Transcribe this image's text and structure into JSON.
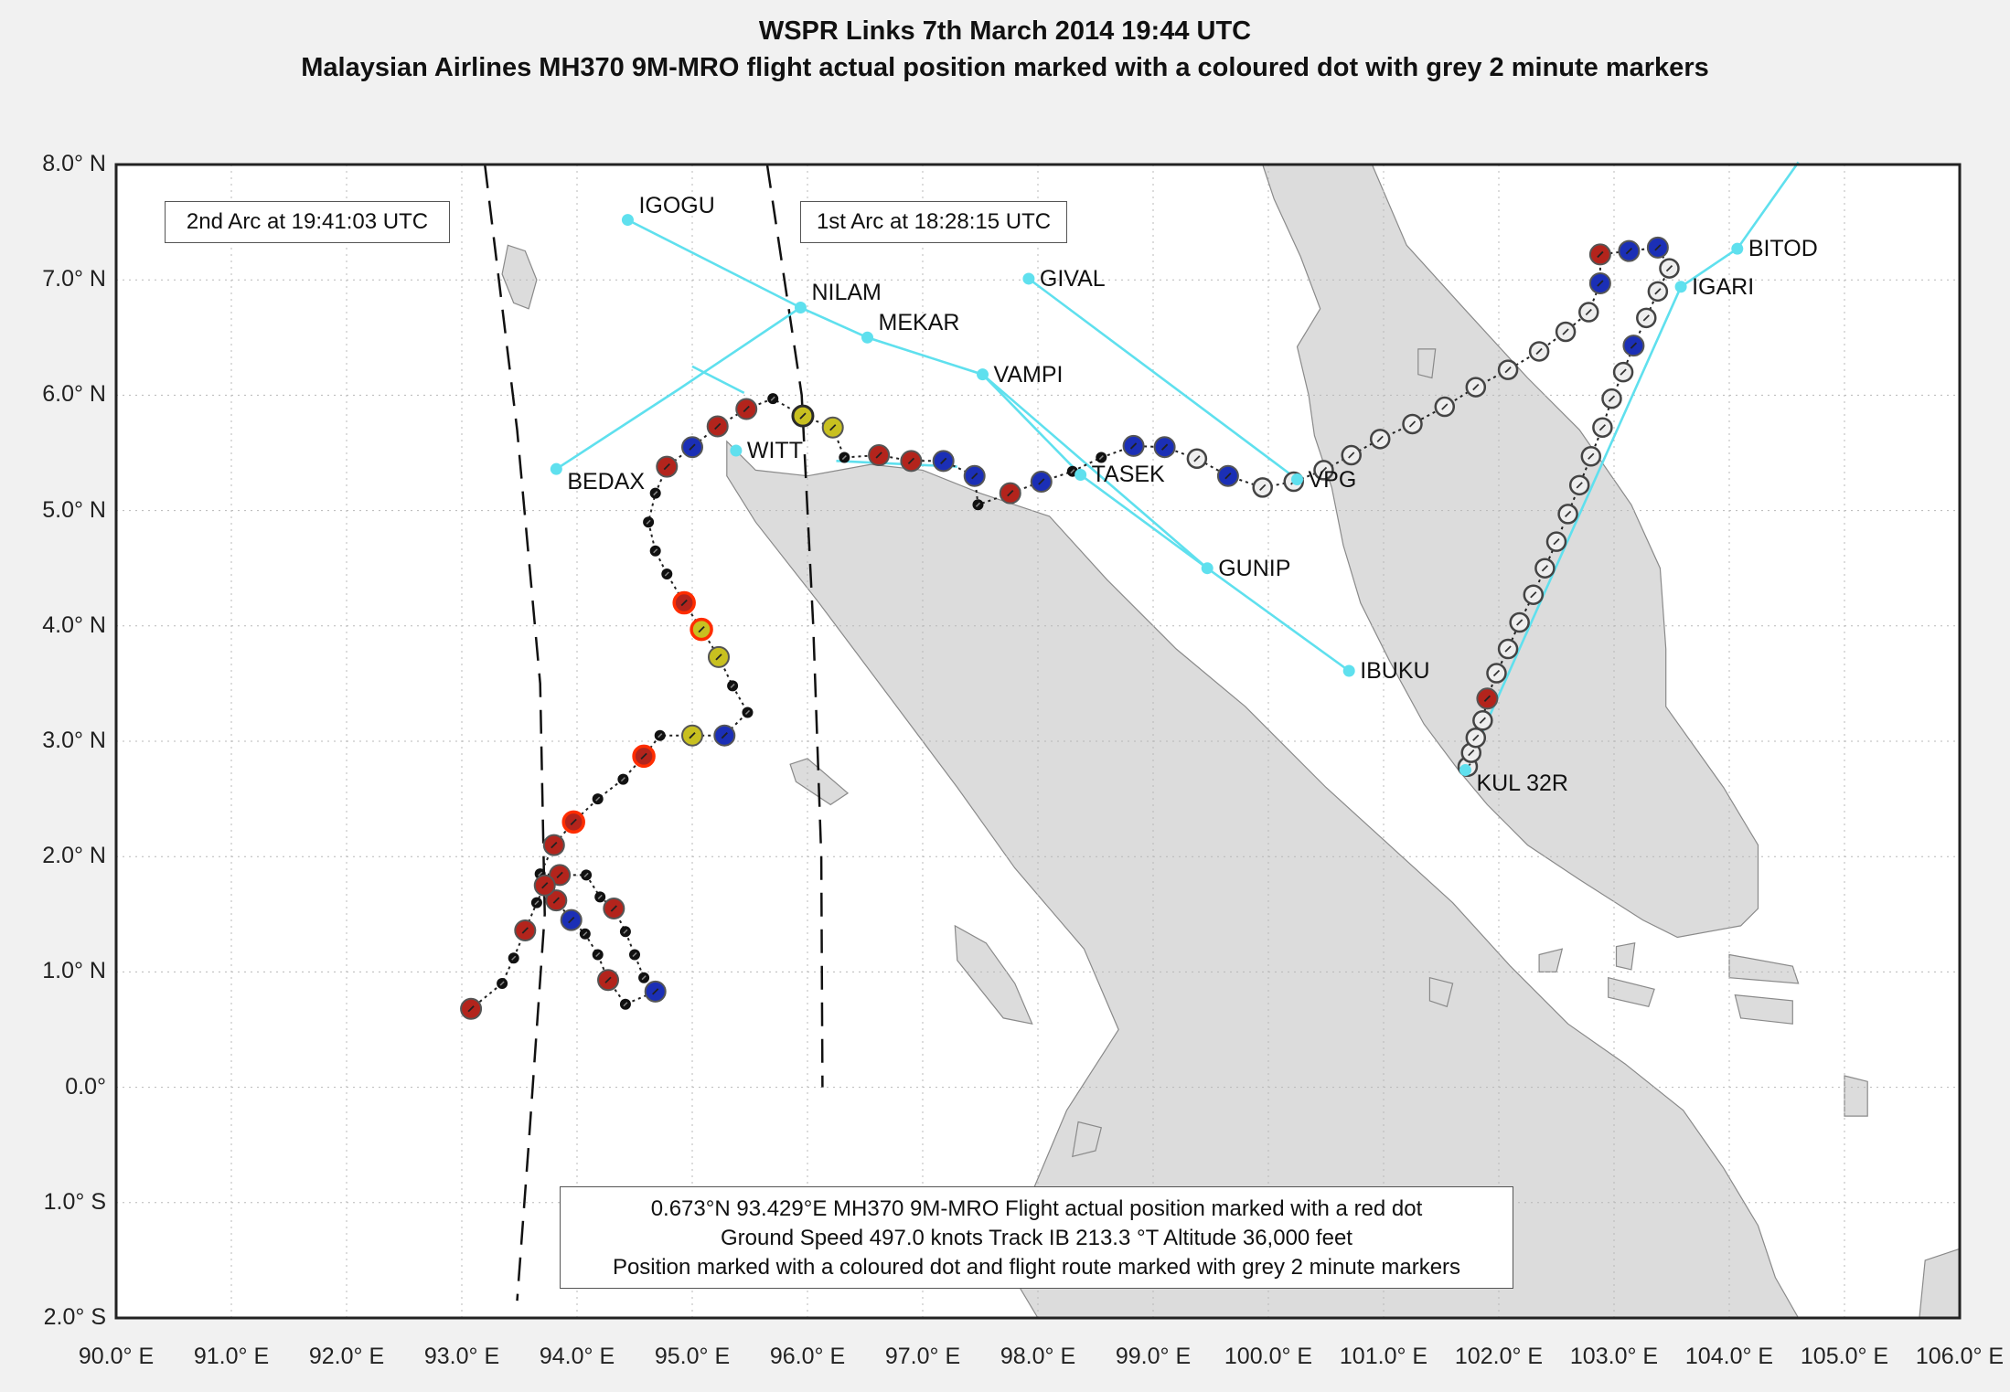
{
  "title": "WSPR Links 7th March 2014 19:44 UTC",
  "subtitle": "Malaysian Airlines MH370 9M-MRO flight actual position marked with a coloured dot with grey 2 minute markers",
  "colors": {
    "land": "#dcdcdc",
    "water": "#ffffff",
    "wspr_link": "#5fe0ee",
    "red_dot": "#b3241c",
    "blue_dot": "#1b2fb6",
    "yellow_dot": "#c8c020",
    "orange_ring": "#ff2d00",
    "grey_marker": "#eeeeee"
  },
  "axes": {
    "lat_labels": [
      "8.0° N",
      "7.0° N",
      "6.0° N",
      "5.0° N",
      "4.0° N",
      "3.0° N",
      "2.0° N",
      "1.0° N",
      "0.0°",
      "1.0° S",
      "2.0° S"
    ],
    "lon_labels": [
      "90.0° E",
      "91.0° E",
      "92.0° E",
      "93.0° E",
      "94.0° E",
      "95.0° E",
      "96.0° E",
      "97.0° E",
      "98.0° E",
      "99.0° E",
      "100.0° E",
      "101.0° E",
      "102.0° E",
      "103.0° E",
      "104.0° E",
      "105.0° E",
      "106.0° E"
    ],
    "lat_range": [
      -2,
      8
    ],
    "lon_range": [
      90,
      106
    ]
  },
  "arc_labels": {
    "arc2": "2nd Arc at 19:41:03 UTC",
    "arc1": "1st Arc at 18:28:15 UTC"
  },
  "info": {
    "line1": "0.673°N 93.429°E MH370 9M-MRO Flight actual position marked with a red dot",
    "line2": "Ground Speed 497.0 knots Track IB 213.3 °T Altitude 36,000 feet",
    "line3": "Position marked with a coloured dot and flight route marked with grey 2 minute markers"
  },
  "waypoints": [
    {
      "name": "IGOGU",
      "lon": 94.44,
      "lat": 7.52
    },
    {
      "name": "NILAM",
      "lon": 95.94,
      "lat": 6.76
    },
    {
      "name": "MEKAR",
      "lon": 96.52,
      "lat": 6.5
    },
    {
      "name": "VAMPI",
      "lon": 97.52,
      "lat": 6.18
    },
    {
      "name": "GIVAL",
      "lon": 97.92,
      "lat": 7.01
    },
    {
      "name": "BEDAX",
      "lon": 93.82,
      "lat": 5.36
    },
    {
      "name": "WITT",
      "lon": 95.38,
      "lat": 5.52
    },
    {
      "name": "TASEK",
      "lon": 98.37,
      "lat": 5.31
    },
    {
      "name": "GUNIP",
      "lon": 99.47,
      "lat": 4.5
    },
    {
      "name": "IBUKU",
      "lon": 100.7,
      "lat": 3.61
    },
    {
      "name": "VPG",
      "lon": 100.25,
      "lat": 5.27
    },
    {
      "name": "BITOD",
      "lon": 104.07,
      "lat": 7.27
    },
    {
      "name": "IGARI",
      "lon": 103.58,
      "lat": 6.94
    },
    {
      "name": "KUL 32R",
      "lon": 101.71,
      "lat": 2.75
    }
  ],
  "wspr_links": [
    [
      [
        94.44,
        7.52
      ],
      [
        95.94,
        6.76
      ],
      [
        96.52,
        6.5
      ],
      [
        97.52,
        6.18
      ],
      [
        98.37,
        5.31
      ],
      [
        99.47,
        4.5
      ]
    ],
    [
      [
        93.82,
        5.36
      ],
      [
        94.88,
        6.05
      ],
      [
        95.94,
        6.76
      ]
    ],
    [
      [
        95.0,
        6.25
      ],
      [
        95.45,
        6.02
      ]
    ],
    [
      [
        96.25,
        5.43
      ],
      [
        97.3,
        5.38
      ]
    ],
    [
      [
        97.92,
        7.01
      ],
      [
        100.25,
        5.27
      ]
    ],
    [
      [
        97.52,
        6.18
      ],
      [
        99.47,
        4.5
      ],
      [
        100.7,
        3.61
      ]
    ],
    [
      [
        104.6,
        8.02
      ],
      [
        104.07,
        7.27
      ],
      [
        103.58,
        6.94
      ],
      [
        101.71,
        2.75
      ]
    ]
  ],
  "arcs": [
    {
      "name": "arc2",
      "points": [
        [
          93.2,
          8.0
        ],
        [
          93.48,
          5.7
        ],
        [
          93.68,
          3.5
        ],
        [
          93.72,
          1.5
        ],
        [
          93.58,
          -0.5
        ],
        [
          93.48,
          -1.85
        ]
      ]
    },
    {
      "name": "arc1",
      "points": [
        [
          95.65,
          8.0
        ],
        [
          95.95,
          6.0
        ],
        [
          96.05,
          4.0
        ],
        [
          96.12,
          2.0
        ],
        [
          96.13,
          0.0
        ]
      ]
    }
  ],
  "flight_path": [
    {
      "lon": 101.73,
      "lat": 2.78,
      "t": "g"
    },
    {
      "lon": 101.76,
      "lat": 2.9,
      "t": "g"
    },
    {
      "lon": 101.8,
      "lat": 3.03,
      "t": "g"
    },
    {
      "lon": 101.86,
      "lat": 3.18,
      "t": "g"
    },
    {
      "lon": 101.9,
      "lat": 3.37,
      "t": "r"
    },
    {
      "lon": 101.98,
      "lat": 3.59,
      "t": "g"
    },
    {
      "lon": 102.08,
      "lat": 3.8,
      "t": "g"
    },
    {
      "lon": 102.18,
      "lat": 4.03,
      "t": "g"
    },
    {
      "lon": 102.3,
      "lat": 4.27,
      "t": "g"
    },
    {
      "lon": 102.4,
      "lat": 4.5,
      "t": "g"
    },
    {
      "lon": 102.5,
      "lat": 4.73,
      "t": "g"
    },
    {
      "lon": 102.6,
      "lat": 4.97,
      "t": "g"
    },
    {
      "lon": 102.7,
      "lat": 5.22,
      "t": "g"
    },
    {
      "lon": 102.8,
      "lat": 5.47,
      "t": "g"
    },
    {
      "lon": 102.9,
      "lat": 5.72,
      "t": "g"
    },
    {
      "lon": 102.98,
      "lat": 5.97,
      "t": "g"
    },
    {
      "lon": 103.08,
      "lat": 6.2,
      "t": "g"
    },
    {
      "lon": 103.17,
      "lat": 6.43,
      "t": "b"
    },
    {
      "lon": 103.28,
      "lat": 6.67,
      "t": "g"
    },
    {
      "lon": 103.38,
      "lat": 6.9,
      "t": "g"
    },
    {
      "lon": 103.48,
      "lat": 7.1,
      "t": "g"
    },
    {
      "lon": 103.38,
      "lat": 7.28,
      "t": "b"
    },
    {
      "lon": 103.13,
      "lat": 7.25,
      "t": "b"
    },
    {
      "lon": 102.88,
      "lat": 7.22,
      "t": "r"
    },
    {
      "lon": 102.88,
      "lat": 6.97,
      "t": "b"
    },
    {
      "lon": 102.78,
      "lat": 6.72,
      "t": "g"
    },
    {
      "lon": 102.58,
      "lat": 6.55,
      "t": "g"
    },
    {
      "lon": 102.35,
      "lat": 6.38,
      "t": "g"
    },
    {
      "lon": 102.08,
      "lat": 6.22,
      "t": "g"
    },
    {
      "lon": 101.8,
      "lat": 6.07,
      "t": "g"
    },
    {
      "lon": 101.53,
      "lat": 5.9,
      "t": "g"
    },
    {
      "lon": 101.25,
      "lat": 5.75,
      "t": "g"
    },
    {
      "lon": 100.97,
      "lat": 5.62,
      "t": "g"
    },
    {
      "lon": 100.72,
      "lat": 5.48,
      "t": "g"
    },
    {
      "lon": 100.48,
      "lat": 5.35,
      "t": "g"
    },
    {
      "lon": 100.22,
      "lat": 5.25,
      "t": "g"
    },
    {
      "lon": 99.95,
      "lat": 5.2,
      "t": "g"
    },
    {
      "lon": 99.65,
      "lat": 5.3,
      "t": "b"
    },
    {
      "lon": 99.38,
      "lat": 5.45,
      "t": "g"
    },
    {
      "lon": 99.1,
      "lat": 5.55,
      "t": "b"
    },
    {
      "lon": 98.83,
      "lat": 5.56,
      "t": "b"
    },
    {
      "lon": 98.55,
      "lat": 5.46,
      "t": "k"
    },
    {
      "lon": 98.3,
      "lat": 5.34,
      "t": "k"
    },
    {
      "lon": 98.03,
      "lat": 5.25,
      "t": "b"
    },
    {
      "lon": 97.76,
      "lat": 5.15,
      "t": "r"
    },
    {
      "lon": 97.48,
      "lat": 5.05,
      "t": "k"
    },
    {
      "lon": 97.45,
      "lat": 5.3,
      "t": "b"
    },
    {
      "lon": 97.18,
      "lat": 5.43,
      "t": "b"
    },
    {
      "lon": 96.9,
      "lat": 5.43,
      "t": "r"
    },
    {
      "lon": 96.62,
      "lat": 5.48,
      "t": "r"
    },
    {
      "lon": 96.32,
      "lat": 5.46,
      "t": "k"
    },
    {
      "lon": 96.22,
      "lat": 5.72,
      "t": "y"
    },
    {
      "lon": 95.96,
      "lat": 5.82,
      "t": "yb"
    },
    {
      "lon": 95.7,
      "lat": 5.97,
      "t": "k"
    },
    {
      "lon": 95.47,
      "lat": 5.88,
      "t": "r"
    },
    {
      "lon": 95.22,
      "lat": 5.73,
      "t": "r"
    },
    {
      "lon": 95.0,
      "lat": 5.55,
      "t": "b"
    },
    {
      "lon": 94.78,
      "lat": 5.38,
      "t": "r"
    },
    {
      "lon": 94.68,
      "lat": 5.15,
      "t": "k"
    },
    {
      "lon": 94.62,
      "lat": 4.9,
      "t": "k"
    },
    {
      "lon": 94.68,
      "lat": 4.65,
      "t": "k"
    },
    {
      "lon": 94.78,
      "lat": 4.45,
      "t": "k"
    },
    {
      "lon": 94.93,
      "lat": 4.2,
      "t": "ro"
    },
    {
      "lon": 95.08,
      "lat": 3.97,
      "t": "yo"
    },
    {
      "lon": 95.23,
      "lat": 3.73,
      "t": "y"
    },
    {
      "lon": 95.35,
      "lat": 3.48,
      "t": "k"
    },
    {
      "lon": 95.48,
      "lat": 3.25,
      "t": "k"
    },
    {
      "lon": 95.28,
      "lat": 3.05,
      "t": "b"
    },
    {
      "lon": 95.0,
      "lat": 3.05,
      "t": "y"
    },
    {
      "lon": 94.72,
      "lat": 3.05,
      "t": "k"
    },
    {
      "lon": 94.58,
      "lat": 2.87,
      "t": "ro"
    },
    {
      "lon": 94.4,
      "lat": 2.67,
      "t": "k"
    },
    {
      "lon": 94.18,
      "lat": 2.5,
      "t": "k"
    },
    {
      "lon": 93.97,
      "lat": 2.3,
      "t": "ro"
    },
    {
      "lon": 93.8,
      "lat": 2.1,
      "t": "r"
    },
    {
      "lon": 93.68,
      "lat": 1.85,
      "t": "k"
    },
    {
      "lon": 93.85,
      "lat": 1.84,
      "t": "r"
    },
    {
      "lon": 94.08,
      "lat": 1.84,
      "t": "k"
    },
    {
      "lon": 94.2,
      "lat": 1.65,
      "t": "k"
    },
    {
      "lon": 94.32,
      "lat": 1.55,
      "t": "r"
    },
    {
      "lon": 94.42,
      "lat": 1.35,
      "t": "k"
    },
    {
      "lon": 94.5,
      "lat": 1.15,
      "t": "k"
    },
    {
      "lon": 94.58,
      "lat": 0.95,
      "t": "k"
    },
    {
      "lon": 94.68,
      "lat": 0.83,
      "t": "b"
    },
    {
      "lon": 94.42,
      "lat": 0.72,
      "t": "k"
    },
    {
      "lon": 94.27,
      "lat": 0.93,
      "t": "r"
    },
    {
      "lon": 94.18,
      "lat": 1.15,
      "t": "k"
    },
    {
      "lon": 94.07,
      "lat": 1.33,
      "t": "k"
    },
    {
      "lon": 93.95,
      "lat": 1.45,
      "t": "b"
    },
    {
      "lon": 93.82,
      "lat": 1.62,
      "t": "r"
    },
    {
      "lon": 93.72,
      "lat": 1.75,
      "t": "r"
    },
    {
      "lon": 93.65,
      "lat": 1.6,
      "t": "k"
    },
    {
      "lon": 93.55,
      "lat": 1.36,
      "t": "r"
    },
    {
      "lon": 93.45,
      "lat": 1.12,
      "t": "k"
    },
    {
      "lon": 93.35,
      "lat": 0.9,
      "t": "k"
    },
    {
      "lon": 93.08,
      "lat": 0.68,
      "t": "r"
    }
  ],
  "land_polygons": [
    [
      [
        95.3,
        5.6
      ],
      [
        95.55,
        5.35
      ],
      [
        96.0,
        5.3
      ],
      [
        96.55,
        5.4
      ],
      [
        97.0,
        5.35
      ],
      [
        97.5,
        5.15
      ],
      [
        98.1,
        4.95
      ],
      [
        98.6,
        4.4
      ],
      [
        99.2,
        3.8
      ],
      [
        99.8,
        3.3
      ],
      [
        100.5,
        2.6
      ],
      [
        101.05,
        2.1
      ],
      [
        101.6,
        1.6
      ],
      [
        102.1,
        1.05
      ],
      [
        102.6,
        0.55
      ],
      [
        103.1,
        0.2
      ],
      [
        103.6,
        -0.2
      ],
      [
        103.95,
        -0.7
      ],
      [
        104.25,
        -1.2
      ],
      [
        104.4,
        -1.65
      ],
      [
        104.6,
        -2.0
      ],
      [
        98.0,
        -2.0
      ],
      [
        97.7,
        -1.5
      ],
      [
        98.25,
        -0.2
      ],
      [
        98.7,
        0.5
      ],
      [
        98.4,
        1.2
      ],
      [
        97.8,
        1.9
      ],
      [
        97.3,
        2.6
      ],
      [
        96.7,
        3.4
      ],
      [
        96.1,
        4.2
      ],
      [
        95.55,
        4.9
      ],
      [
        95.3,
        5.3
      ]
    ],
    [
      [
        99.95,
        8.0
      ],
      [
        100.05,
        7.7
      ],
      [
        100.28,
        7.2
      ],
      [
        100.45,
        6.75
      ],
      [
        100.25,
        6.42
      ],
      [
        100.35,
        6.0
      ],
      [
        100.4,
        5.65
      ],
      [
        100.55,
        5.2
      ],
      [
        100.65,
        4.7
      ],
      [
        100.8,
        4.2
      ],
      [
        101.05,
        3.7
      ],
      [
        101.35,
        3.15
      ],
      [
        101.65,
        2.75
      ],
      [
        101.9,
        2.45
      ],
      [
        102.25,
        2.1
      ],
      [
        102.7,
        1.8
      ],
      [
        103.25,
        1.45
      ],
      [
        103.55,
        1.3
      ],
      [
        104.1,
        1.4
      ],
      [
        104.25,
        1.55
      ],
      [
        104.25,
        2.1
      ],
      [
        103.95,
        2.6
      ],
      [
        103.45,
        3.3
      ],
      [
        103.45,
        3.8
      ],
      [
        103.4,
        4.5
      ],
      [
        103.15,
        5.05
      ],
      [
        102.7,
        5.7
      ],
      [
        102.25,
        6.15
      ],
      [
        101.7,
        6.75
      ],
      [
        101.2,
        7.3
      ],
      [
        100.9,
        8.0
      ]
    ],
    [
      [
        93.4,
        7.3
      ],
      [
        93.55,
        7.25
      ],
      [
        93.65,
        7.0
      ],
      [
        93.58,
        6.75
      ],
      [
        93.45,
        6.8
      ],
      [
        93.35,
        7.05
      ]
    ],
    [
      [
        101.3,
        6.4
      ],
      [
        101.45,
        6.4
      ],
      [
        101.42,
        6.15
      ],
      [
        101.3,
        6.18
      ]
    ],
    [
      [
        95.85,
        2.8
      ],
      [
        96.0,
        2.85
      ],
      [
        96.35,
        2.55
      ],
      [
        96.2,
        2.45
      ],
      [
        95.9,
        2.65
      ]
    ],
    [
      [
        97.28,
        1.4
      ],
      [
        97.55,
        1.25
      ],
      [
        97.8,
        0.9
      ],
      [
        97.95,
        0.55
      ],
      [
        97.7,
        0.6
      ],
      [
        97.3,
        1.1
      ]
    ],
    [
      [
        98.35,
        -0.3
      ],
      [
        98.55,
        -0.35
      ],
      [
        98.5,
        -0.55
      ],
      [
        98.3,
        -0.6
      ]
    ],
    [
      [
        102.35,
        1.15
      ],
      [
        102.55,
        1.2
      ],
      [
        102.5,
        1.0
      ],
      [
        102.35,
        1.0
      ]
    ],
    [
      [
        103.02,
        1.22
      ],
      [
        103.18,
        1.25
      ],
      [
        103.15,
        1.02
      ],
      [
        103.02,
        1.05
      ]
    ],
    [
      [
        104.0,
        1.15
      ],
      [
        104.55,
        1.05
      ],
      [
        104.6,
        0.9
      ],
      [
        104.0,
        0.95
      ]
    ],
    [
      [
        104.05,
        0.8
      ],
      [
        104.55,
        0.75
      ],
      [
        104.55,
        0.55
      ],
      [
        104.1,
        0.6
      ]
    ],
    [
      [
        102.95,
        0.95
      ],
      [
        103.35,
        0.85
      ],
      [
        103.3,
        0.7
      ],
      [
        102.95,
        0.78
      ]
    ],
    [
      [
        105.0,
        0.1
      ],
      [
        105.2,
        0.05
      ],
      [
        105.2,
        -0.25
      ],
      [
        105.0,
        -0.25
      ]
    ],
    [
      [
        105.7,
        -1.5
      ],
      [
        106.0,
        -1.4
      ],
      [
        106.0,
        -2.0
      ],
      [
        105.65,
        -2.0
      ]
    ],
    [
      [
        101.4,
        0.95
      ],
      [
        101.6,
        0.9
      ],
      [
        101.55,
        0.7
      ],
      [
        101.4,
        0.75
      ]
    ]
  ]
}
